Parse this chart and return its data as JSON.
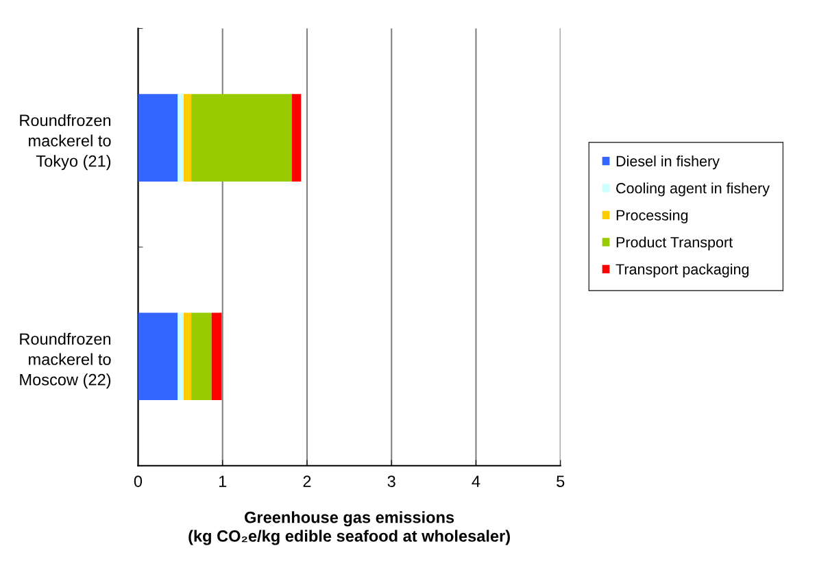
{
  "chart_data": {
    "type": "bar",
    "orientation": "horizontal",
    "stacked": true,
    "categories": [
      "Roundfrozen\nmackerel to\nTokyo (21)",
      "Roundfrozen\nmackerel to\nMoscow (22)"
    ],
    "series": [
      {
        "name": "Diesel in fishery",
        "color": "#3366ff",
        "values": [
          0.47,
          0.47
        ]
      },
      {
        "name": "Cooling agent in fishery",
        "color": "#ccffff",
        "values": [
          0.07,
          0.07
        ]
      },
      {
        "name": "Processing",
        "color": "#ffcc00",
        "values": [
          0.09,
          0.09
        ]
      },
      {
        "name": "Product Transport",
        "color": "#99cc00",
        "values": [
          1.19,
          0.24
        ]
      },
      {
        "name": "Transport packaging",
        "color": "#ff0000",
        "values": [
          0.11,
          0.12
        ]
      }
    ],
    "xlabel": "Greenhouse gas emissions\n(kg CO₂e/kg edible seafood at wholesaler)",
    "xlim": [
      0,
      5
    ],
    "xticks": [
      0,
      1,
      2,
      3,
      4,
      5
    ],
    "grid": "x",
    "legend": "right"
  }
}
